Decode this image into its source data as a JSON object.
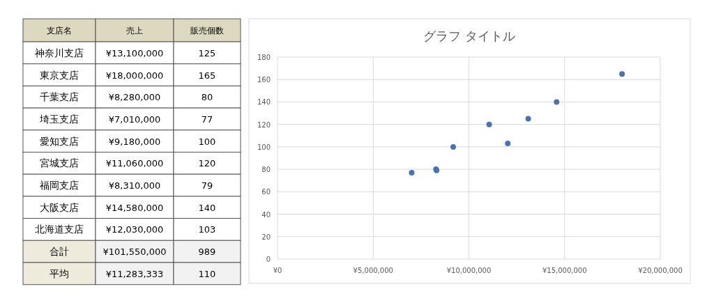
{
  "chart_data": [
    {
      "type": "other",
      "xlabel": "支店名",
      "categories": [
        "神奈川支店",
        "東京支店",
        "千葉支店",
        "埼玉支店",
        "愛知支店",
        "宮城支店",
        "福岡支店",
        "大阪支店",
        "北海道支店",
        "合計",
        "平均"
      ],
      "series": [
        {
          "name": "売上",
          "values": [
            13100000,
            18000000,
            8280000,
            7010000,
            9180000,
            11060000,
            8310000,
            14580000,
            12030000,
            101550000,
            11283333
          ],
          "colors": [
            "#ffffff",
            "#ffffff",
            "#ffffff",
            "#ffffff",
            "#ffffff",
            "#ffffff",
            "#ffffff",
            "#ffffff",
            "#ffffff",
            "#f2f2f2",
            "#f2f2f2"
          ],
          "value_labels": [
            "¥13,100,000",
            "¥18,000,000",
            "¥8,280,000",
            "¥7,010,000",
            "¥9,180,000",
            "¥11,060,000",
            "¥8,310,000",
            "¥14,580,000",
            "¥12,030,000",
            "¥101,550,000",
            "¥11,283,333"
          ]
        },
        {
          "name": "販売個数",
          "values": [
            125,
            165,
            80,
            77,
            100,
            120,
            79,
            140,
            103,
            989,
            110
          ],
          "colors": [
            "#ffffff",
            "#ffffff",
            "#ffffff",
            "#ffffff",
            "#ffffff",
            "#ffffff",
            "#ffffff",
            "#ffffff",
            "#ffffff",
            "#f2f2f2",
            "#f2f2f2"
          ],
          "value_labels": [
            "125",
            "165",
            "80",
            "77",
            "100",
            "120",
            "79",
            "140",
            "103",
            "989",
            "110"
          ]
        }
      ]
    },
    {
      "type": "scatter",
      "title": "グラフ タイトル",
      "x": [
        13100000,
        18000000,
        8280000,
        7010000,
        9180000,
        11060000,
        8310000,
        14580000,
        12030000
      ],
      "values": [
        125,
        165,
        80,
        77,
        100,
        120,
        79,
        140,
        103
      ],
      "color": "#4a72b0",
      "marker": "circle",
      "grid": true,
      "xlim": [
        0,
        20000000
      ],
      "xticks": [
        {
          "value": 0,
          "label": "¥0"
        },
        {
          "value": 5000000,
          "label": "¥5,000,000"
        },
        {
          "value": 10000000,
          "label": "¥10,000,000"
        },
        {
          "value": 15000000,
          "label": "¥15,000,000"
        },
        {
          "value": 20000000,
          "label": "¥20,000,000"
        }
      ],
      "ylim": [
        0,
        180
      ],
      "yticks": [
        0,
        20,
        40,
        60,
        80,
        100,
        120,
        140,
        160,
        180
      ]
    }
  ]
}
